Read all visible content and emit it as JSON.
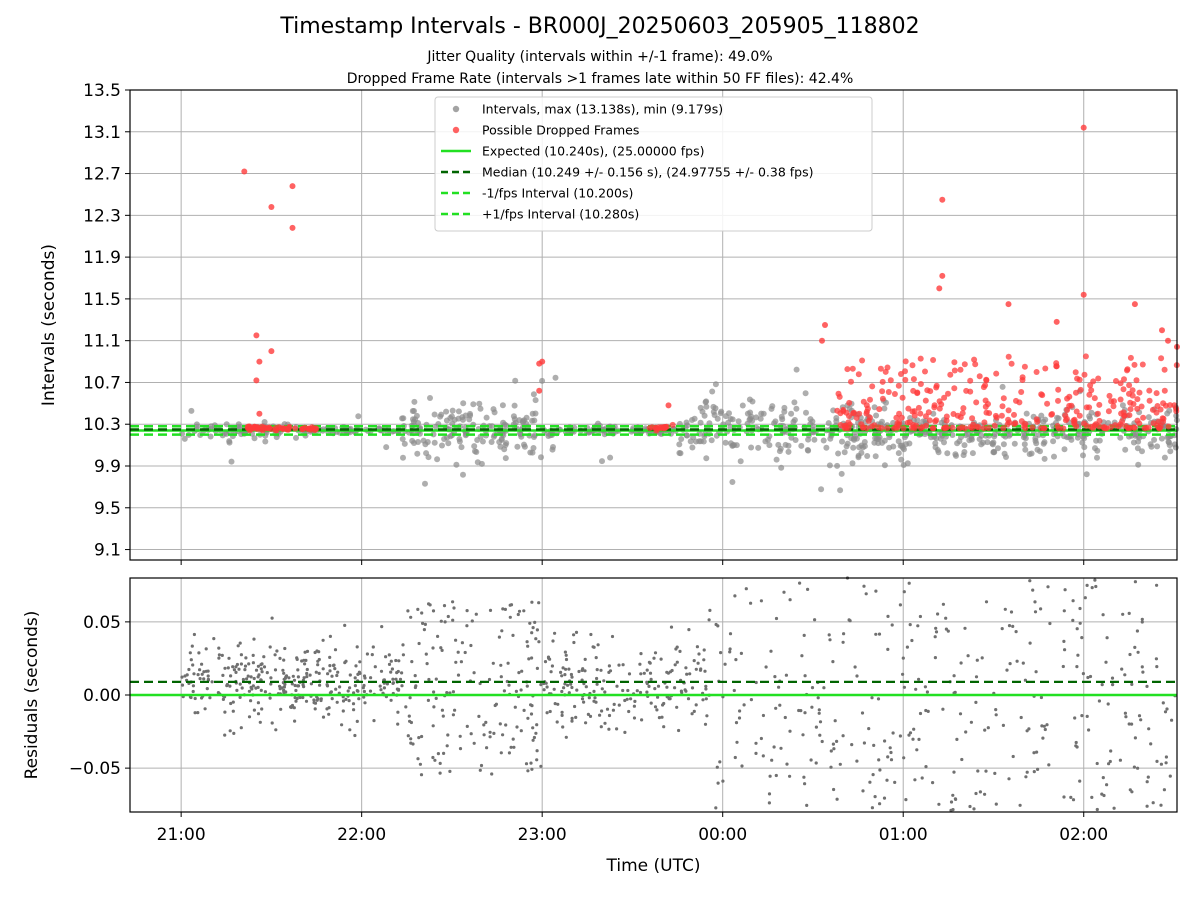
{
  "chart_data": [
    {
      "type": "scatter",
      "title": "Timestamp Intervals - BR000J_20250603_205905_118802",
      "subtitle_lines": [
        "Jitter Quality (intervals within +/-1 frame): 49.0%",
        "Dropped Frame Rate (intervals >1 frames late within 50 FF files): 42.4%"
      ],
      "ylabel": "Intervals (seconds)",
      "ylim": [
        9.0,
        13.5
      ],
      "yticks": [
        "9.1",
        "9.5",
        "9.9",
        "10.3",
        "10.7",
        "11.1",
        "11.5",
        "11.9",
        "12.3",
        "12.7",
        "13.1",
        "13.5"
      ],
      "xlim": [
        "20:43",
        "02:31"
      ],
      "grid": true,
      "legend_placement": "top-center",
      "legend": [
        {
          "label": "Intervals, max (13.138s), min (9.179s)",
          "kind": "marker",
          "color": "#8c8c8c"
        },
        {
          "label": "Possible Dropped Frames",
          "kind": "marker",
          "color": "#ff3b3b"
        },
        {
          "label": "Expected (10.240s), (25.00000 fps)",
          "kind": "line",
          "color": "#22e022"
        },
        {
          "label": "Median (10.249 +/- 0.156 s), (24.97755 +/- 0.38 fps)",
          "kind": "dashed",
          "color": "#006400"
        },
        {
          "label": "-1/fps Interval (10.200s)",
          "kind": "dashed",
          "color": "#22e022"
        },
        {
          "label": "+1/fps Interval (10.280s)",
          "kind": "dashed",
          "color": "#22e022"
        }
      ],
      "reference_lines": {
        "expected": 10.24,
        "median": 10.249,
        "minus_one_fps": 10.2,
        "plus_one_fps": 10.28
      },
      "series": [
        {
          "name": "Intervals",
          "color": "#8c8c8c",
          "segments": [
            {
              "x_start": "21:00",
              "x_end": "21:40",
              "center": 10.24,
              "spread": 0.08,
              "count": 70,
              "outlier_rate": 0.06,
              "outlier_spread": 0.6
            },
            {
              "x_start": "21:40",
              "x_end": "22:13",
              "center": 10.24,
              "spread": 0.03,
              "count": 60,
              "outlier_rate": 0.01,
              "outlier_spread": 0.2
            },
            {
              "x_start": "22:13",
              "x_end": "23:05",
              "center": 10.24,
              "spread": 0.25,
              "count": 180,
              "outlier_rate": 0.05,
              "outlier_spread": 0.55
            },
            {
              "x_start": "23:05",
              "x_end": "23:45",
              "center": 10.24,
              "spread": 0.04,
              "count": 90,
              "outlier_rate": 0.02,
              "outlier_spread": 0.4
            },
            {
              "x_start": "23:45",
              "x_end": "00:55",
              "center": 10.24,
              "spread": 0.28,
              "count": 240,
              "outlier_rate": 0.06,
              "outlier_spread": 0.6
            },
            {
              "x_start": "00:55",
              "x_end": "02:31",
              "center": 10.2,
              "spread": 0.22,
              "count": 300,
              "outlier_rate": 0.05,
              "outlier_spread": 0.5
            }
          ]
        },
        {
          "name": "Possible Dropped Frames",
          "color": "#ff3b3b",
          "points": [
            {
              "x": "21:21",
              "y": 12.72
            },
            {
              "x": "21:30",
              "y": 12.38
            },
            {
              "x": "21:37",
              "y": 12.58
            },
            {
              "x": "21:37",
              "y": 12.18
            },
            {
              "x": "21:25",
              "y": 11.15
            },
            {
              "x": "21:26",
              "y": 10.9
            },
            {
              "x": "21:30",
              "y": 11.0
            },
            {
              "x": "21:25",
              "y": 10.72
            },
            {
              "x": "21:26",
              "y": 10.4
            },
            {
              "x": "22:59",
              "y": 10.88
            },
            {
              "x": "23:00",
              "y": 10.9
            },
            {
              "x": "22:59",
              "y": 10.62
            },
            {
              "x": "23:42",
              "y": 10.48
            },
            {
              "x": "00:34",
              "y": 11.25
            },
            {
              "x": "00:33",
              "y": 11.1
            },
            {
              "x": "01:13",
              "y": 12.45
            },
            {
              "x": "01:13",
              "y": 11.72
            },
            {
              "x": "01:12",
              "y": 11.6
            },
            {
              "x": "01:35",
              "y": 11.45
            },
            {
              "x": "01:51",
              "y": 11.28
            },
            {
              "x": "02:00",
              "y": 13.14
            },
            {
              "x": "02:00",
              "y": 11.54
            },
            {
              "x": "02:17",
              "y": 11.45
            },
            {
              "x": "02:26",
              "y": 11.2
            },
            {
              "x": "02:28",
              "y": 11.1
            },
            {
              "x": "02:31",
              "y": 11.04
            }
          ],
          "clusters": [
            {
              "x_start": "21:22",
              "x_end": "21:45",
              "center": 10.26,
              "spread": 0.02,
              "count": 55
            },
            {
              "x_start": "23:35",
              "x_end": "23:44",
              "center": 10.27,
              "spread": 0.02,
              "count": 18
            },
            {
              "x_start": "00:38",
              "x_end": "02:31",
              "y_min": 10.26,
              "y_max": 10.95,
              "count": 330
            }
          ]
        }
      ]
    },
    {
      "type": "scatter",
      "ylabel": "Residuals (seconds)",
      "xlabel": "Time (UTC)",
      "ylim": [
        -0.08,
        0.08
      ],
      "yticks": [
        "−0.05",
        "0.00",
        "0.05"
      ],
      "xlim": [
        "20:43",
        "02:31"
      ],
      "xticks": [
        "21:00",
        "22:00",
        "23:00",
        "00:00",
        "01:00",
        "02:00"
      ],
      "grid": true,
      "reference_lines": {
        "zero": 0.0,
        "median_offset": 0.009
      },
      "series": [
        {
          "name": "Residuals",
          "color": "#707070",
          "segments": [
            {
              "x_start": "21:00",
              "x_end": "22:15",
              "center": 0.008,
              "spread": 0.02,
              "count": 340
            },
            {
              "x_start": "22:15",
              "x_end": "23:00",
              "center": 0.005,
              "spread": 0.06,
              "count": 170
            },
            {
              "x_start": "23:00",
              "x_end": "23:55",
              "center": 0.008,
              "spread": 0.025,
              "count": 200
            },
            {
              "x_start": "23:55",
              "x_end": "02:31",
              "center": 0.0,
              "spread": 0.08,
              "count": 360
            }
          ]
        }
      ]
    }
  ]
}
